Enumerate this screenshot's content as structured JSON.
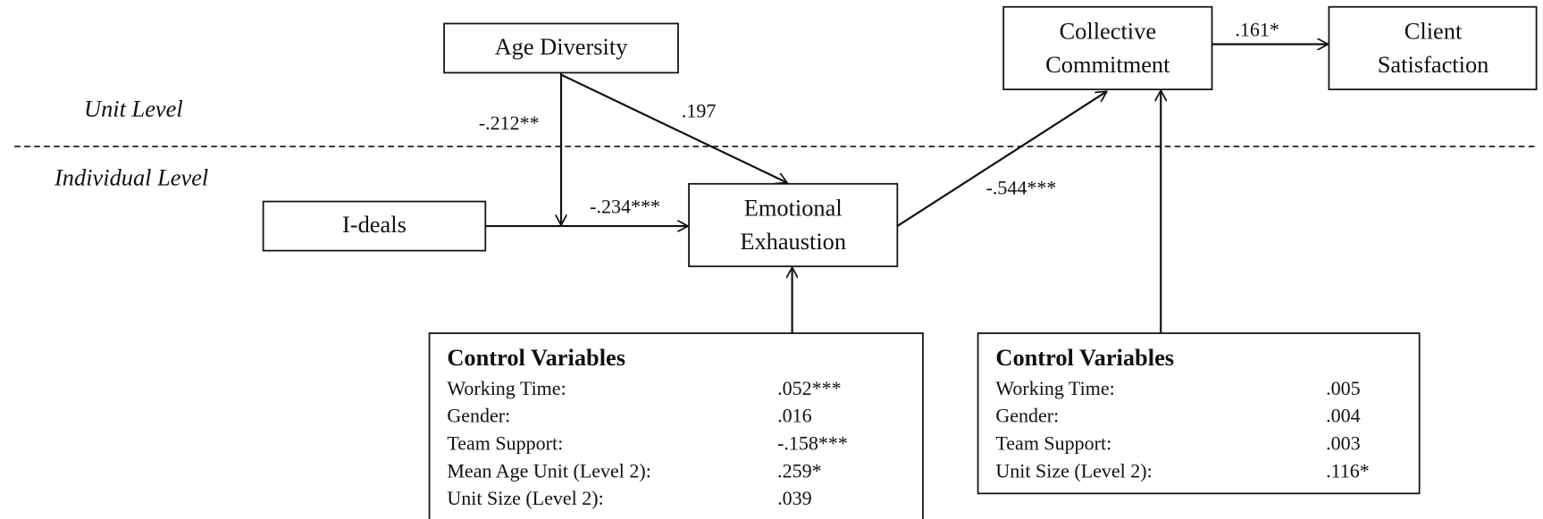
{
  "levels": {
    "unit": "Unit Level",
    "individual": "Individual Level"
  },
  "nodes": [
    {
      "lines": [
        "Age Diversity"
      ]
    },
    {
      "lines": [
        "Collective",
        "Commitment"
      ]
    },
    {
      "lines": [
        "Client",
        "Satisfaction"
      ]
    },
    {
      "lines": [
        "I-deals"
      ]
    },
    {
      "lines": [
        "Emotional",
        "Exhaustion"
      ]
    }
  ],
  "edges": [
    {
      "label": ".161*"
    },
    {
      "label": "-.212**"
    },
    {
      "label": ".197"
    },
    {
      "label": "-.234***"
    },
    {
      "label": "-.544***"
    }
  ],
  "control_boxes": [
    {
      "title": "Control Variables",
      "rows": [
        [
          "Working Time:",
          ".052***"
        ],
        [
          "Gender:",
          ".016"
        ],
        [
          "Team Support:",
          "-.158***"
        ],
        [
          "Mean Age Unit (Level 2):",
          ".259*"
        ],
        [
          "Unit Size (Level 2):",
          ".039"
        ]
      ]
    },
    {
      "title": "Control Variables",
      "rows": [
        [
          "Working Time:",
          ".005"
        ],
        [
          "Gender:",
          ".004"
        ],
        [
          "Team Support:",
          ".003"
        ],
        [
          "Unit Size (Level 2):",
          ".116*"
        ]
      ]
    }
  ]
}
